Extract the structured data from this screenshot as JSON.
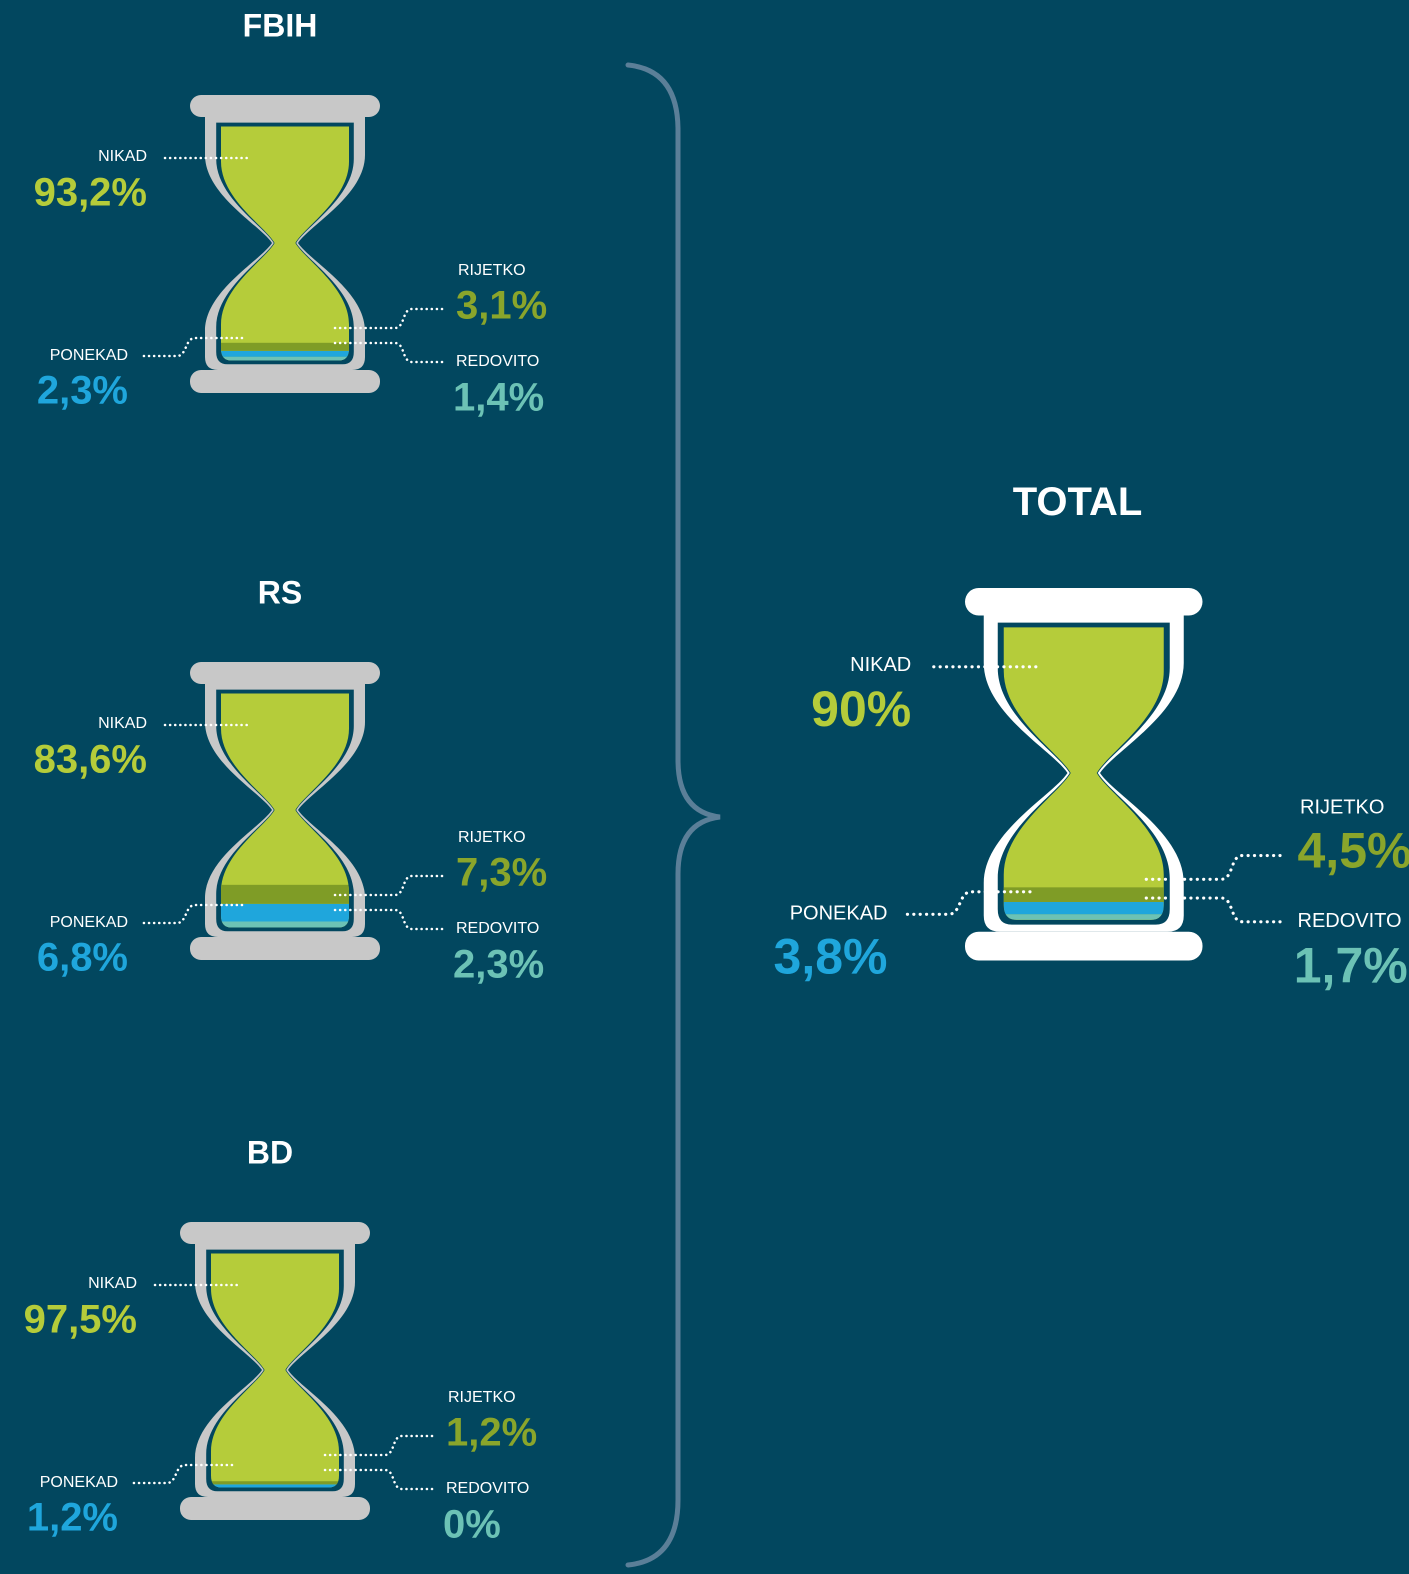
{
  "chart_data": [
    {
      "type": "hourglass",
      "title": "FBIH",
      "categories": [
        "NIKAD",
        "RIJETKO",
        "PONEKAD",
        "REDOVITO"
      ],
      "values": [
        93.2,
        3.1,
        2.3,
        1.4
      ],
      "value_labels": [
        "93,2%",
        "3,1%",
        "2,3%",
        "1,4%"
      ],
      "colors": [
        "#b5cc3a",
        "#7f9c26",
        "#1fa6dc",
        "#6cc2b5"
      ],
      "frame_color": "#c8c8c8"
    },
    {
      "type": "hourglass",
      "title": "RS",
      "categories": [
        "NIKAD",
        "RIJETKO",
        "PONEKAD",
        "REDOVITO"
      ],
      "values": [
        83.6,
        7.3,
        6.8,
        2.3
      ],
      "value_labels": [
        "83,6%",
        "7,3%",
        "6,8%",
        "2,3%"
      ],
      "colors": [
        "#b5cc3a",
        "#7f9c26",
        "#1fa6dc",
        "#6cc2b5"
      ],
      "frame_color": "#c8c8c8"
    },
    {
      "type": "hourglass",
      "title": "BD",
      "categories": [
        "NIKAD",
        "RIJETKO",
        "PONEKAD",
        "REDOVITO"
      ],
      "values": [
        97.5,
        1.2,
        1.2,
        0
      ],
      "value_labels": [
        "97,5%",
        "1,2%",
        "1,2%",
        "0%"
      ],
      "colors": [
        "#b5cc3a",
        "#7f9c26",
        "#1fa6dc",
        "#6cc2b5"
      ],
      "frame_color": "#c8c8c8"
    },
    {
      "type": "hourglass",
      "title": "TOTAL",
      "categories": [
        "NIKAD",
        "RIJETKO",
        "PONEKAD",
        "REDOVITO"
      ],
      "values": [
        90,
        4.5,
        3.8,
        1.7
      ],
      "value_labels": [
        "90%",
        "4,5%",
        "3,8%",
        "1,7%"
      ],
      "colors": [
        "#b5cc3a",
        "#7f9c26",
        "#1fa6dc",
        "#6cc2b5"
      ],
      "frame_color": "#ffffff"
    }
  ]
}
